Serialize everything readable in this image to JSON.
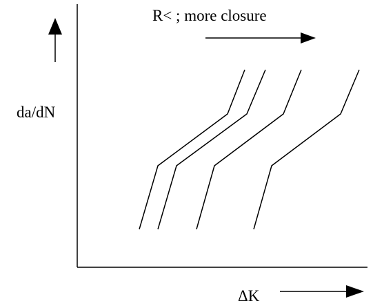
{
  "diagram": {
    "y_axis_label": "da/dN",
    "x_axis_label": "ΔK",
    "annotation": "R< ; more closure",
    "curves": [
      {
        "name": "curve-1"
      },
      {
        "name": "curve-2"
      },
      {
        "name": "curve-3"
      },
      {
        "name": "curve-4"
      }
    ],
    "colors": {
      "ink": "#000000",
      "background": "#ffffff"
    }
  }
}
